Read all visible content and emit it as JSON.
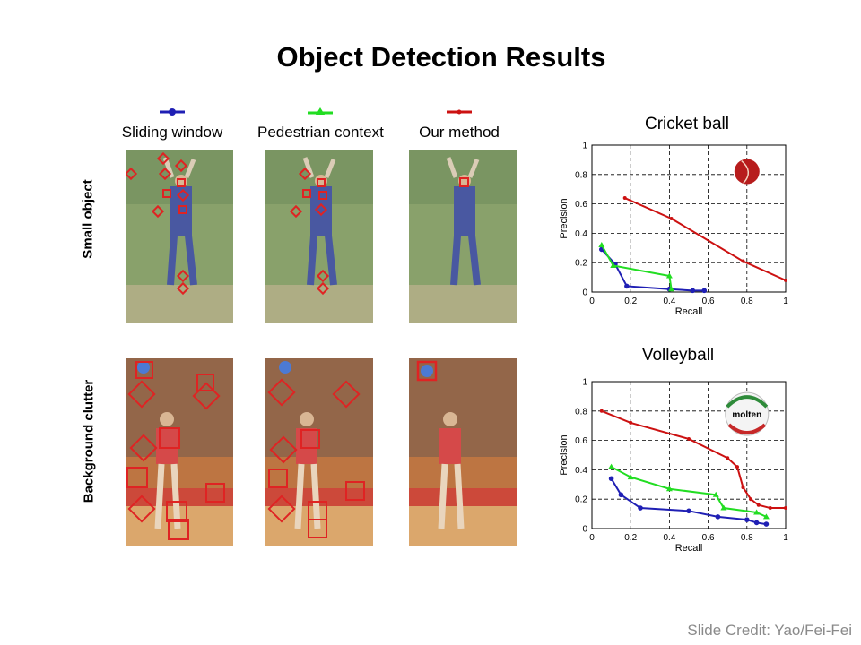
{
  "title": "Object Detection Results",
  "legend": [
    {
      "label": "Sliding window",
      "color": "#1f1fb4"
    },
    {
      "label": "Pedestrian context",
      "color": "#22dd22"
    },
    {
      "label": "Our method",
      "color": "#cc1111"
    }
  ],
  "rows": {
    "small_object": "Small object",
    "background_clutter": "Background clutter"
  },
  "credit": "Slide Credit: Yao/Fei-Fei",
  "chart_data": [
    {
      "type": "line",
      "title": "Cricket ball",
      "xlabel": "Recall",
      "ylabel": "Precision",
      "xlim": [
        0,
        1
      ],
      "ylim": [
        0,
        1
      ],
      "xticks": [
        "0",
        "0.2",
        "0.4",
        "0.6",
        "0.8",
        "1"
      ],
      "yticks": [
        "0",
        "0.2",
        "0.4",
        "0.6",
        "0.8",
        "1"
      ],
      "grid": true,
      "icon": "cricket-ball",
      "series": [
        {
          "name": "Sliding window",
          "color": "#1f1fb4",
          "x": [
            0.05,
            0.12,
            0.18,
            0.4,
            0.52,
            0.58
          ],
          "y": [
            0.29,
            0.19,
            0.04,
            0.02,
            0.01,
            0.01
          ]
        },
        {
          "name": "Pedestrian context",
          "color": "#22dd22",
          "x": [
            0.05,
            0.11,
            0.4,
            0.41
          ],
          "y": [
            0.32,
            0.18,
            0.11,
            0.02
          ]
        },
        {
          "name": "Our method",
          "color": "#cc1111",
          "x": [
            0.17,
            0.41,
            0.78,
            1.0
          ],
          "y": [
            0.64,
            0.5,
            0.21,
            0.08
          ]
        }
      ]
    },
    {
      "type": "line",
      "title": "Volleyball",
      "xlabel": "Recall",
      "ylabel": "Precision",
      "xlim": [
        0,
        1
      ],
      "ylim": [
        0,
        1
      ],
      "xticks": [
        "0",
        "0.2",
        "0.4",
        "0.6",
        "0.8",
        "1"
      ],
      "yticks": [
        "0",
        "0.2",
        "0.4",
        "0.6",
        "0.8",
        "1"
      ],
      "grid": true,
      "icon": "volleyball",
      "icon_text": "molten",
      "series": [
        {
          "name": "Sliding window",
          "color": "#1f1fb4",
          "x": [
            0.1,
            0.15,
            0.25,
            0.5,
            0.65,
            0.8,
            0.85,
            0.9
          ],
          "y": [
            0.34,
            0.23,
            0.14,
            0.12,
            0.08,
            0.06,
            0.04,
            0.03
          ]
        },
        {
          "name": "Pedestrian context",
          "color": "#22dd22",
          "x": [
            0.1,
            0.2,
            0.4,
            0.64,
            0.68,
            0.85,
            0.9
          ],
          "y": [
            0.42,
            0.35,
            0.27,
            0.23,
            0.14,
            0.11,
            0.08
          ]
        },
        {
          "name": "Our method",
          "color": "#cc1111",
          "x": [
            0.05,
            0.2,
            0.5,
            0.7,
            0.75,
            0.78,
            0.82,
            0.86,
            0.92,
            1.0
          ],
          "y": [
            0.8,
            0.72,
            0.61,
            0.48,
            0.42,
            0.28,
            0.2,
            0.16,
            0.14,
            0.14
          ]
        }
      ]
    }
  ]
}
